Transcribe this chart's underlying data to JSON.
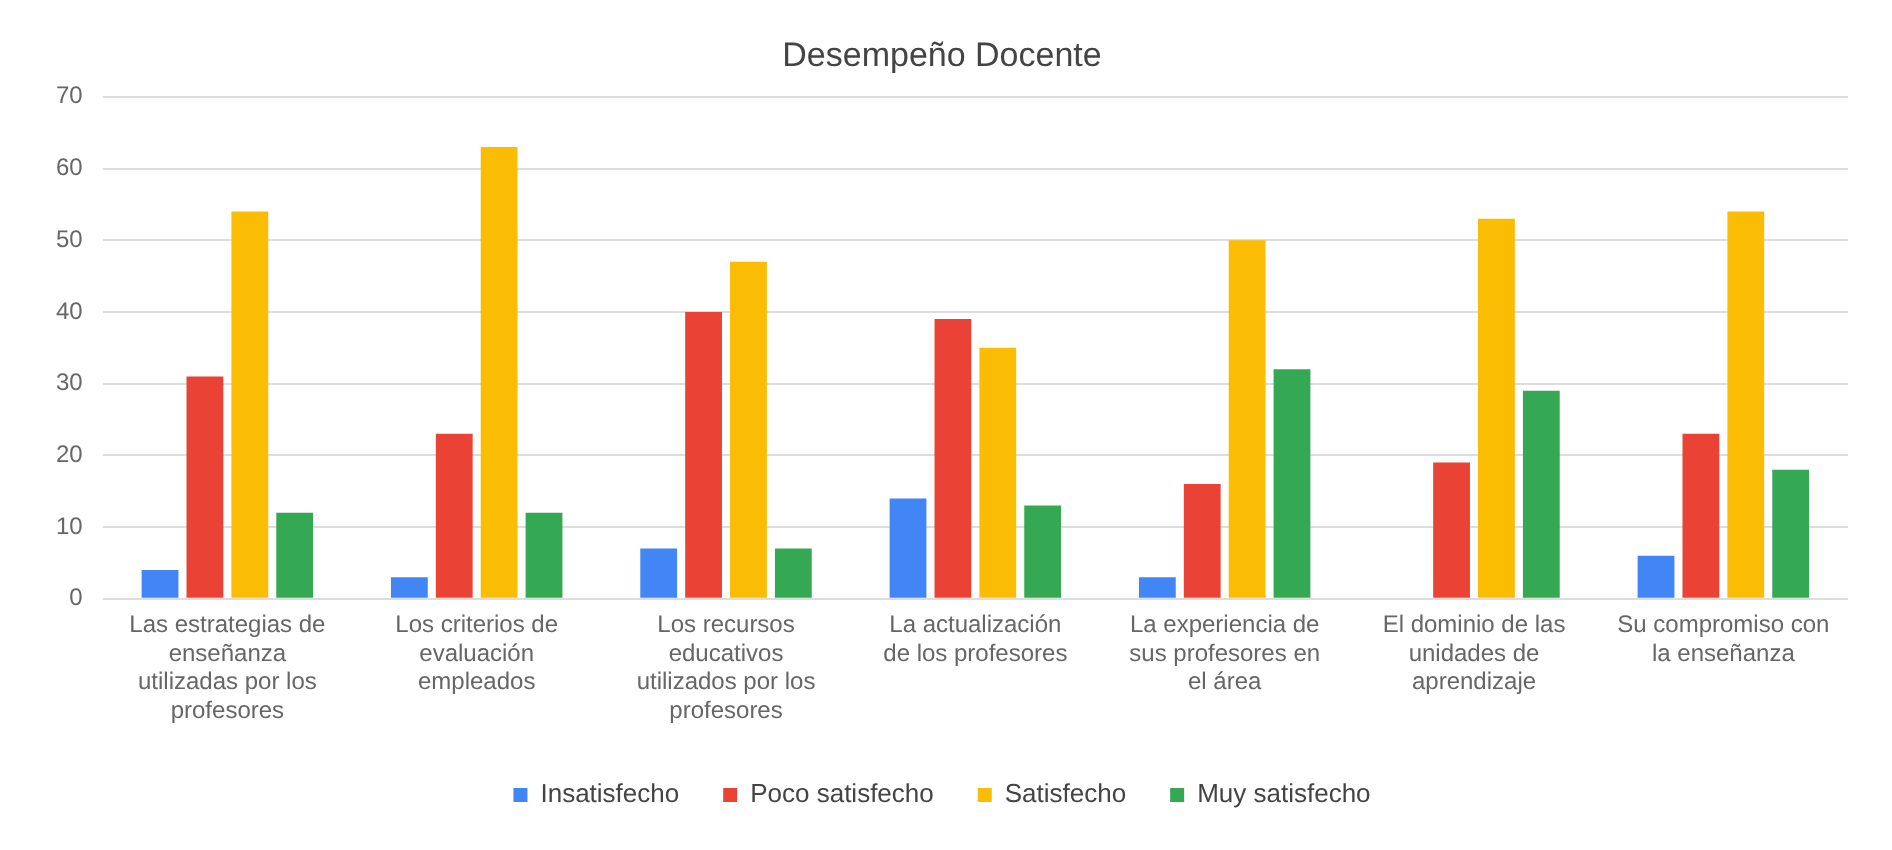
{
  "chart_data": {
    "type": "bar",
    "title": "Desempeño Docente",
    "categories": [
      "Las estrategias de enseñanza utilizadas por los profesores",
      "Los criterios de evaluación empleados",
      "Los recursos educativos utilizados por los profesores",
      "La actualización de los profesores",
      "La experiencia de sus profesores en el área",
      "El dominio de las unidades de aprendizaje",
      "Su compromiso con la enseñanza"
    ],
    "series": [
      {
        "name": "Insatisfecho",
        "color": "#4285f4",
        "values": [
          4,
          3,
          7,
          14,
          3,
          0,
          6
        ]
      },
      {
        "name": "Poco satisfecho",
        "color": "#ea4335",
        "values": [
          31,
          23,
          40,
          39,
          16,
          19,
          23
        ]
      },
      {
        "name": "Satisfecho",
        "color": "#fbbc04",
        "values": [
          54,
          63,
          47,
          35,
          50,
          53,
          54
        ]
      },
      {
        "name": "Muy satisfecho",
        "color": "#34a853",
        "values": [
          12,
          12,
          7,
          13,
          32,
          29,
          18
        ]
      }
    ],
    "ylim": [
      0,
      70
    ],
    "yticks": [
      0,
      10,
      20,
      30,
      40,
      50,
      60,
      70
    ],
    "grid": "y",
    "legend": "bottom"
  }
}
